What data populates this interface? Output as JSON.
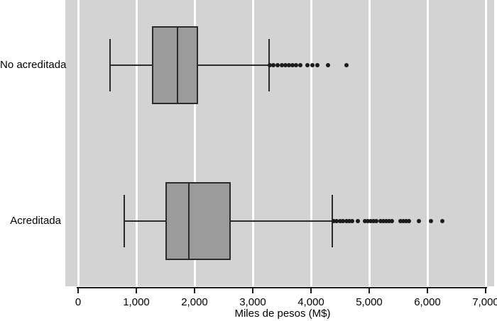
{
  "chart_data": {
    "type": "boxplot",
    "orientation": "horizontal",
    "title": "",
    "xlabel": "Miles de pesos (M$)",
    "ylabel": "",
    "xlim": [
      0,
      7000
    ],
    "x_ticks": [
      0,
      1000,
      2000,
      3000,
      4000,
      5000,
      6000,
      7000
    ],
    "x_tick_labels": [
      "0",
      "1,000",
      "2,000",
      "3,000",
      "4,000",
      "5,000",
      "6,000",
      "7,000"
    ],
    "grid": "vertical white gridlines on gray plot background",
    "legend": "none",
    "categories": [
      "No acreditada",
      "Acreditada"
    ],
    "series": [
      {
        "name": "No acreditada",
        "whisker_low": 550,
        "q1": 1270,
        "median": 1710,
        "q3": 2060,
        "whisker_high": 3280,
        "outliers": [
          3290,
          3350,
          3430,
          3500,
          3560,
          3620,
          3680,
          3740,
          3820,
          3940,
          4020,
          4110,
          4290,
          4610
        ]
      },
      {
        "name": "Acreditada",
        "whisker_low": 790,
        "q1": 1500,
        "median": 1900,
        "q3": 2620,
        "whisker_high": 4370,
        "outliers": [
          4390,
          4440,
          4500,
          4550,
          4610,
          4660,
          4710,
          4800,
          4930,
          4980,
          5020,
          5070,
          5120,
          5200,
          5240,
          5290,
          5340,
          5390,
          5540,
          5590,
          5630,
          5680,
          5850,
          6060,
          6260
        ]
      }
    ],
    "colors": {
      "page_bg": "#ffffff",
      "plot_bg": "#d3d3d3",
      "gridline": "#ffffff",
      "box_fill": "#9b9b9b",
      "box_border": "#2b2b2b",
      "outlier_dot": "#1b1b1b",
      "axis": "#1b1b1b",
      "text": "#000000"
    }
  }
}
